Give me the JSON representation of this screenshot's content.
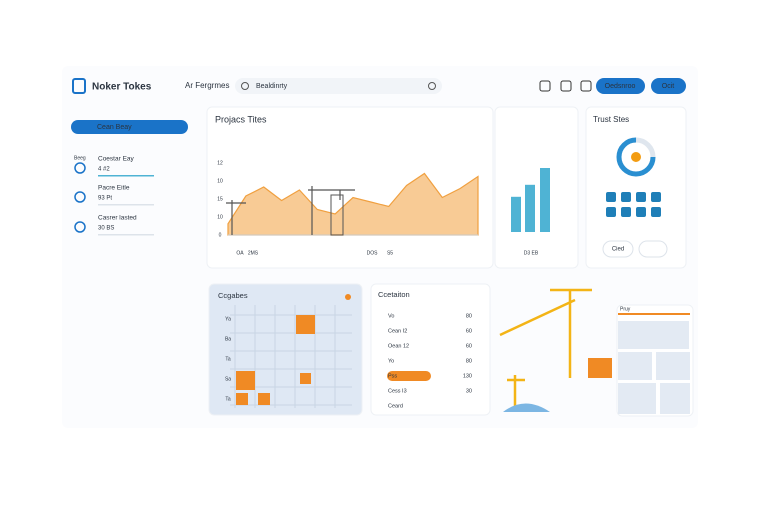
{
  "header": {
    "logo": "Noker Tokes",
    "nav": "Ar Fergrmes",
    "search": "Bealdinrty",
    "buttons": [
      "Oedsnroo",
      "Ocit"
    ]
  },
  "sidebar": {
    "button": "Cean Beay",
    "items": [
      {
        "tag": "Beeg",
        "title": "Coestar Eay",
        "meta": "4 #2"
      },
      {
        "title": "Pacre Eitle",
        "meta": "93 Pt"
      },
      {
        "title": "Casrer lasted",
        "meta": "30 BS"
      }
    ]
  },
  "projects": {
    "title": "Projacs Tites",
    "y_labels": [
      "12",
      "10",
      "15",
      "10",
      "0"
    ],
    "x_labels": [
      "OA",
      "2MS",
      "DOS",
      "S5"
    ],
    "values": [
      15,
      52,
      64,
      46,
      60,
      34,
      28,
      50,
      44,
      38,
      66,
      82,
      50,
      62,
      78
    ],
    "ylim": [
      0,
      100
    ],
    "color": "#f5b971"
  },
  "bars": {
    "label": "D3 EB",
    "values": [
      44,
      59,
      80
    ],
    "ylim": [
      0,
      100
    ],
    "color": "#4fb3d4"
  },
  "trust": {
    "title": "Trust Stes",
    "button": "Cied"
  },
  "grid_card": {
    "title": "Ccgabes",
    "row_labels": [
      "Ya",
      "Ba",
      "Ta",
      "Sa",
      "Ta"
    ]
  },
  "list": {
    "title": "Ccetaiton",
    "rows": [
      [
        "Vo",
        "80"
      ],
      [
        "Cean I2",
        "60"
      ],
      [
        "Oean 12",
        "60"
      ],
      [
        "Yo",
        "80"
      ],
      [
        "Pss",
        "130"
      ],
      [
        "Cess I3",
        "30"
      ],
      [
        "Ceard"
      ]
    ]
  },
  "panel": {
    "title": "Pruy"
  }
}
